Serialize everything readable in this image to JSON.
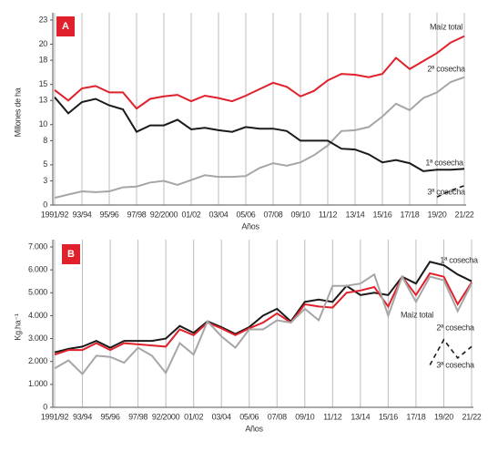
{
  "chart_data": [
    {
      "type": "line",
      "panel": "A",
      "y_label": "Millones de ha",
      "x_label": "Años",
      "categories": [
        "1991/92",
        null,
        "93/94",
        null,
        "95/96",
        null,
        "97/98",
        null,
        "92/2000",
        null,
        "01/02",
        null,
        "03/04",
        null,
        "05/06",
        null,
        "07/08",
        null,
        "09/10",
        null,
        "11/12",
        null,
        "13/14",
        null,
        "15/16",
        null,
        "17/18",
        null,
        "19/20",
        null,
        "21/22"
      ],
      "ylim": [
        0,
        23
      ],
      "yticks": [
        0,
        3,
        5,
        8,
        10,
        13,
        15,
        18,
        20,
        23
      ],
      "series": [
        {
          "name": "Maíz total",
          "color": "#e0202a",
          "values": [
            14.3,
            13.0,
            14.5,
            14.8,
            14.0,
            14.0,
            12.0,
            13.2,
            13.5,
            13.7,
            12.9,
            13.6,
            13.3,
            12.9,
            13.6,
            14.4,
            15.2,
            14.7,
            13.5,
            14.2,
            15.5,
            16.3,
            16.2,
            15.9,
            16.3,
            18.3,
            16.9,
            17.9,
            18.9,
            20.2,
            21.0
          ]
        },
        {
          "name": "2ª cosecha",
          "color": "#a6a6a6",
          "values": [
            0.9,
            1.3,
            1.7,
            1.6,
            1.7,
            2.2,
            2.3,
            2.8,
            3.0,
            2.5,
            3.1,
            3.7,
            3.5,
            3.5,
            3.6,
            4.6,
            5.2,
            4.9,
            5.3,
            6.2,
            7.4,
            9.2,
            9.3,
            9.7,
            11.0,
            12.6,
            11.8,
            13.3,
            14.0,
            15.3,
            15.9
          ]
        },
        {
          "name": "1ª cosecha",
          "color": "#1a1a1a",
          "values": [
            13.4,
            11.4,
            12.8,
            13.2,
            12.4,
            11.9,
            9.1,
            9.9,
            9.9,
            10.6,
            9.4,
            9.6,
            9.3,
            9.1,
            9.7,
            9.5,
            9.5,
            9.2,
            8.0,
            8.0,
            8.0,
            7.0,
            6.9,
            6.3,
            5.3,
            5.6,
            5.2,
            4.2,
            4.4,
            4.4,
            4.5
          ]
        },
        {
          "name": "3ª cosecha",
          "color": "#1a1a1a",
          "dashed": true,
          "values": [
            null,
            null,
            null,
            null,
            null,
            null,
            null,
            null,
            null,
            null,
            null,
            null,
            null,
            null,
            null,
            null,
            null,
            null,
            null,
            null,
            null,
            null,
            null,
            null,
            null,
            null,
            null,
            null,
            1.0,
            1.8,
            2.4
          ]
        }
      ]
    },
    {
      "type": "line",
      "panel": "B",
      "y_label": "Kg.ha⁻¹",
      "x_label": "Años",
      "categories": [
        "1991/92",
        null,
        "93/94",
        null,
        "95/96",
        null,
        "97/98",
        null,
        "92/2000",
        null,
        "01/02",
        null,
        "03/04",
        null,
        "05/06",
        null,
        "07/08",
        null,
        "09/10",
        null,
        "11/12",
        null,
        "13/14",
        null,
        "15/16",
        null,
        "17/18",
        null,
        "19/20",
        null,
        "21/22"
      ],
      "ylim": [
        0,
        7000
      ],
      "yticks": [
        0,
        {
          "value": 1000,
          "label": "1.000"
        },
        {
          "value": 2000,
          "label": "2.000"
        },
        {
          "value": 3000,
          "label": "3.000"
        },
        {
          "value": 4000,
          "label": "4.000"
        },
        {
          "value": 5000,
          "label": "5.000"
        },
        {
          "value": 6000,
          "label": "6.000"
        },
        {
          "value": 7000,
          "label": "7.000"
        }
      ],
      "series": [
        {
          "name": "1ª cosecha",
          "color": "#1a1a1a",
          "values": [
            2400,
            2550,
            2650,
            2900,
            2600,
            2900,
            2900,
            2900,
            3000,
            3550,
            3250,
            3750,
            3500,
            3200,
            3500,
            4000,
            4300,
            3750,
            4600,
            4700,
            4600,
            5300,
            4900,
            5000,
            4900,
            5700,
            5400,
            6350,
            6200,
            5800,
            5500
          ]
        },
        {
          "name": "Maíz total",
          "color": "#e0202a",
          "values": [
            2300,
            2500,
            2500,
            2800,
            2500,
            2800,
            2750,
            2700,
            2650,
            3400,
            3150,
            3700,
            3450,
            3150,
            3450,
            3700,
            4100,
            3700,
            4500,
            4400,
            4350,
            5000,
            5100,
            5250,
            4400,
            5700,
            4900,
            5850,
            5700,
            4500,
            5450
          ]
        },
        {
          "name": "2ª cosecha",
          "color": "#a6a6a6",
          "values": [
            1700,
            2050,
            1450,
            2250,
            2200,
            1950,
            2600,
            2250,
            1500,
            2800,
            2300,
            3750,
            3100,
            2600,
            3400,
            3400,
            3800,
            3700,
            4300,
            3800,
            5300,
            5300,
            5400,
            5800,
            4000,
            5700,
            4600,
            5700,
            5550,
            4200,
            5400
          ]
        },
        {
          "name": "3ª cosecha",
          "color": "#1a1a1a",
          "dashed": true,
          "values": [
            null,
            null,
            null,
            null,
            null,
            null,
            null,
            null,
            null,
            null,
            null,
            null,
            null,
            null,
            null,
            null,
            null,
            null,
            null,
            null,
            null,
            null,
            null,
            null,
            null,
            null,
            null,
            1850,
            2950,
            2150,
            2650
          ]
        }
      ]
    }
  ]
}
